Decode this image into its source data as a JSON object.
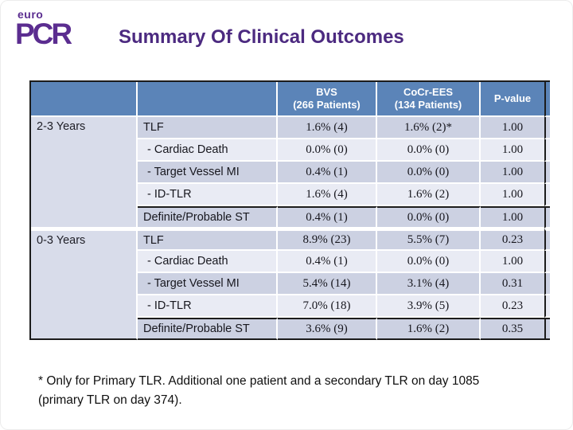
{
  "logo": {
    "small_text": "euro",
    "big_text": "PCR"
  },
  "title": "Summary Of Clinical Outcomes",
  "table": {
    "header": {
      "bvs_line1": "BVS",
      "bvs_line2": "(266 Patients)",
      "cocr_line1": "CoCr-EES",
      "cocr_line2": "(134 Patients)",
      "p_value": "P-value"
    },
    "groups": [
      {
        "period": "2-3 Years",
        "rows": [
          {
            "label": "TLF",
            "bvs": "1.6% (4)",
            "cocr": "1.6% (2)*",
            "p": "1.00"
          },
          {
            "label": "- Cardiac Death",
            "bvs": "0.0% (0)",
            "cocr": "0.0% (0)",
            "p": "1.00"
          },
          {
            "label": "- Target Vessel MI",
            "bvs": "0.4% (1)",
            "cocr": "0.0% (0)",
            "p": "1.00"
          },
          {
            "label": "- ID-TLR",
            "bvs": "1.6% (4)",
            "cocr": "1.6% (2)",
            "p": "1.00"
          },
          {
            "label": "Definite/Probable ST",
            "bvs": "0.4% (1)",
            "cocr": "0.0% (0)",
            "p": "1.00"
          }
        ]
      },
      {
        "period": "0-3 Years",
        "rows": [
          {
            "label": "TLF",
            "bvs": "8.9% (23)",
            "cocr": "5.5% (7)",
            "p": "0.23"
          },
          {
            "label": "- Cardiac Death",
            "bvs": "0.4% (1)",
            "cocr": "0.0% (0)",
            "p": "1.00"
          },
          {
            "label": "- Target Vessel MI",
            "bvs": "5.4% (14)",
            "cocr": "3.1% (4)",
            "p": "0.31"
          },
          {
            "label": "- ID-TLR",
            "bvs": "7.0% (18)",
            "cocr": "3.9% (5)",
            "p": "0.23"
          },
          {
            "label": "Definite/Probable ST",
            "bvs": "3.6% (9)",
            "cocr": "1.6% (2)",
            "p": "0.35"
          }
        ]
      }
    ]
  },
  "footnote": {
    "line1": "* Only for Primary TLR. Additional one patient and a secondary TLR on day 1085",
    "line2": "(primary TLR on day 374)."
  },
  "colors": {
    "header_blue": "#5b84b8",
    "band_dark": "#ccd1e2",
    "band_light": "#e9ebf4",
    "period_col": "#d8dcea",
    "title_purple": "#4c2a80",
    "logo_purple": "#5b2d90",
    "line_black": "#1c1c1c"
  }
}
